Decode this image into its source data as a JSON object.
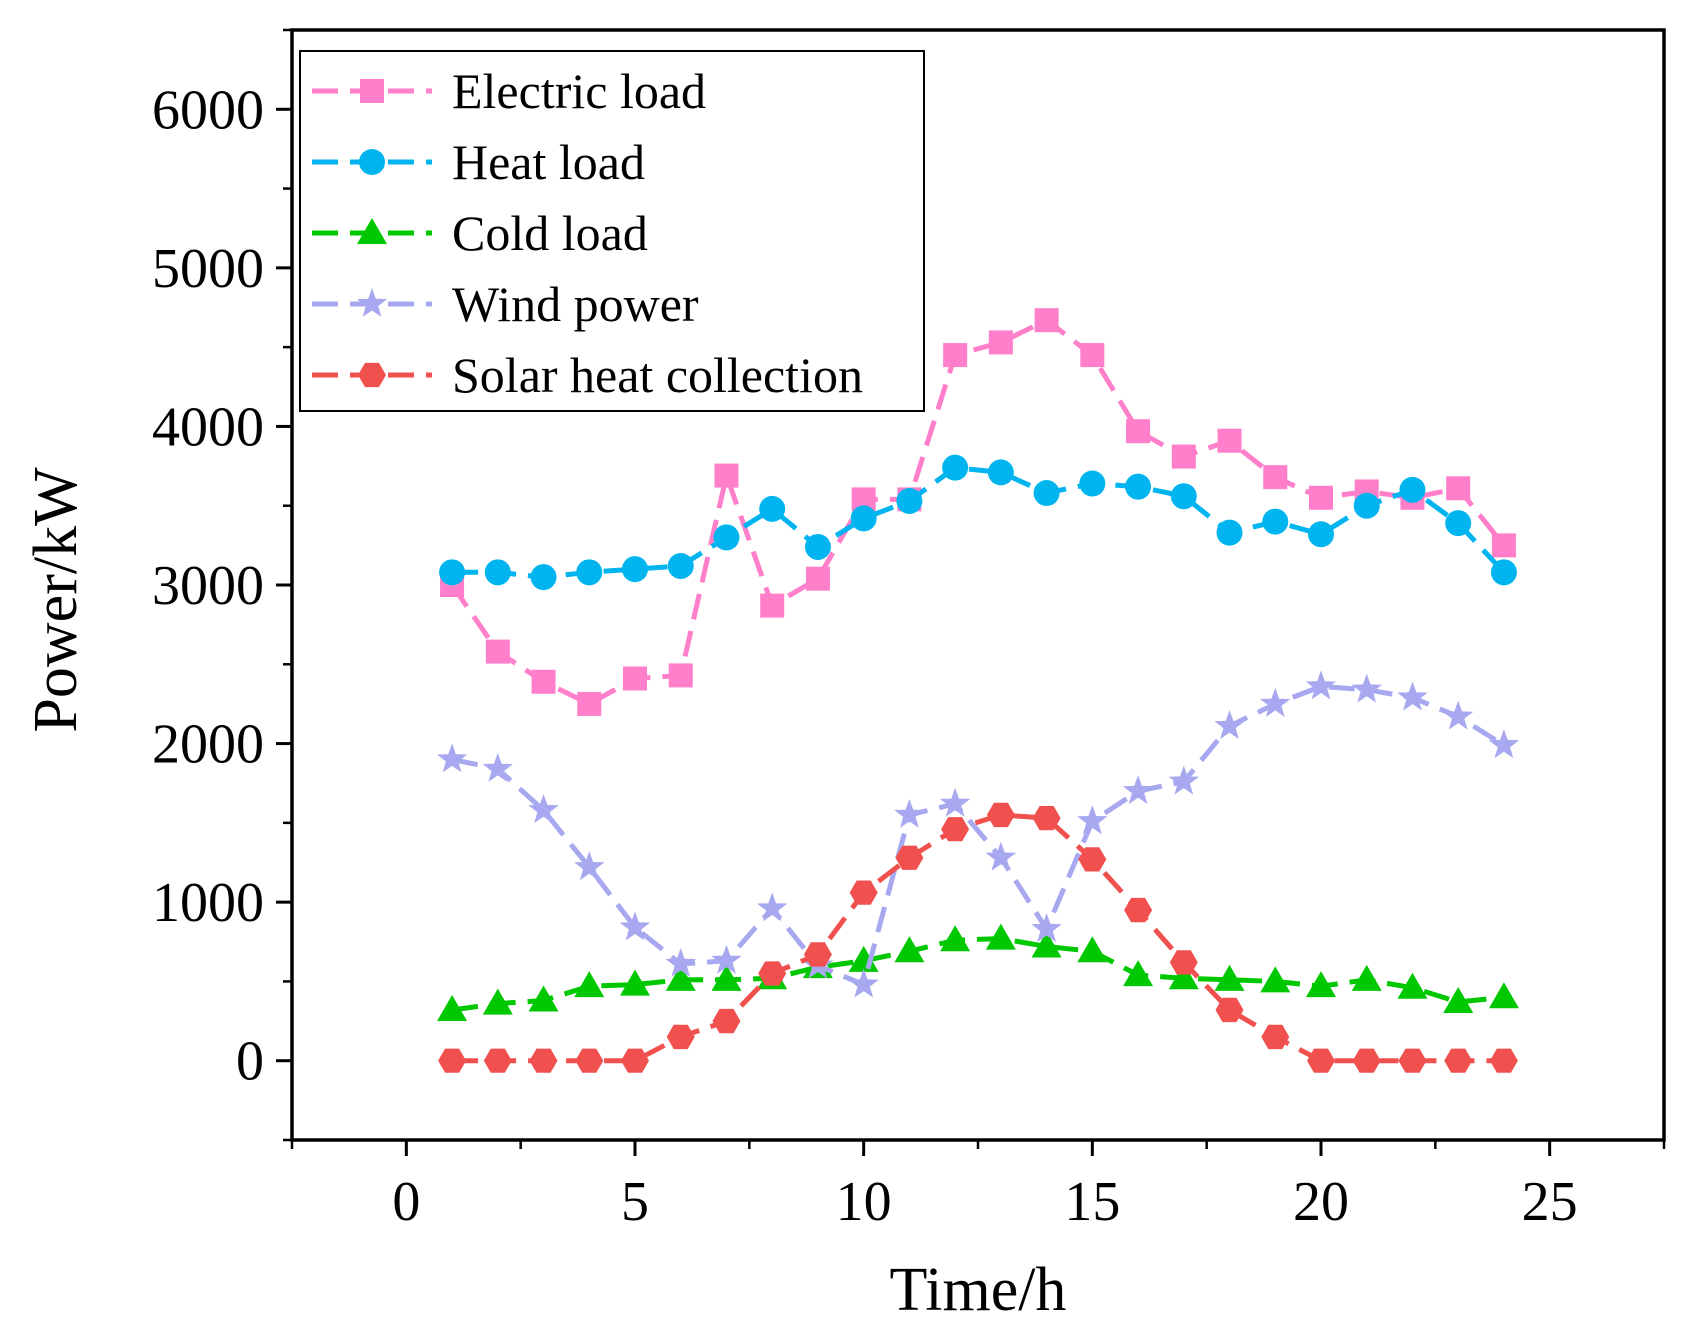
{
  "chart_data": {
    "type": "line",
    "title": "",
    "xlabel": "Time/h",
    "ylabel": "Power/kW",
    "xlim": [
      -2.5,
      27.5
    ],
    "ylim": [
      -500,
      6500
    ],
    "xticks": [
      0,
      5,
      10,
      15,
      20,
      25
    ],
    "xtick_labels": [
      "0",
      "5",
      "10",
      "15",
      "20",
      "25"
    ],
    "yticks": [
      0,
      1000,
      2000,
      3000,
      4000,
      5000,
      6000
    ],
    "ytick_labels": [
      "0",
      "1000",
      "2000",
      "3000",
      "4000",
      "5000",
      "6000"
    ],
    "grid": false,
    "legend_position": "top-left",
    "x": [
      1,
      2,
      3,
      4,
      5,
      6,
      7,
      8,
      9,
      10,
      11,
      12,
      13,
      14,
      15,
      16,
      17,
      18,
      19,
      20,
      21,
      22,
      23,
      24
    ],
    "series": [
      {
        "name": "Electric load",
        "color": "#ff7fcb",
        "marker": "square",
        "values": [
          3000,
          2580,
          2390,
          2250,
          2410,
          2430,
          3690,
          2870,
          3040,
          3540,
          3540,
          4450,
          4530,
          4670,
          4450,
          3970,
          3810,
          3910,
          3680,
          3550,
          3590,
          3550,
          3610,
          3250
        ]
      },
      {
        "name": "Heat load",
        "color": "#00b4f0",
        "marker": "circle",
        "values": [
          3080,
          3080,
          3050,
          3080,
          3100,
          3120,
          3300,
          3480,
          3240,
          3420,
          3530,
          3740,
          3710,
          3580,
          3640,
          3620,
          3560,
          3330,
          3400,
          3320,
          3500,
          3600,
          3390,
          3080
        ]
      },
      {
        "name": "Cold load",
        "color": "#00c800",
        "marker": "triangle",
        "values": [
          320,
          360,
          380,
          470,
          480,
          510,
          510,
          520,
          590,
          630,
          690,
          760,
          770,
          720,
          690,
          540,
          520,
          510,
          500,
          470,
          510,
          460,
          370,
          400
        ]
      },
      {
        "name": "Wind power",
        "color": "#a8a8f0",
        "marker": "star",
        "values": [
          1900,
          1840,
          1580,
          1220,
          840,
          610,
          630,
          960,
          600,
          480,
          1550,
          1620,
          1280,
          830,
          1510,
          1700,
          1760,
          2110,
          2250,
          2360,
          2340,
          2290,
          2170,
          1990
        ]
      },
      {
        "name": "Solar heat collection",
        "color": "#f0504e",
        "marker": "hexagon",
        "values": [
          0,
          0,
          0,
          0,
          0,
          150,
          250,
          550,
          670,
          1060,
          1280,
          1460,
          1550,
          1530,
          1270,
          950,
          620,
          320,
          150,
          0,
          0,
          0,
          0,
          0
        ]
      }
    ]
  }
}
